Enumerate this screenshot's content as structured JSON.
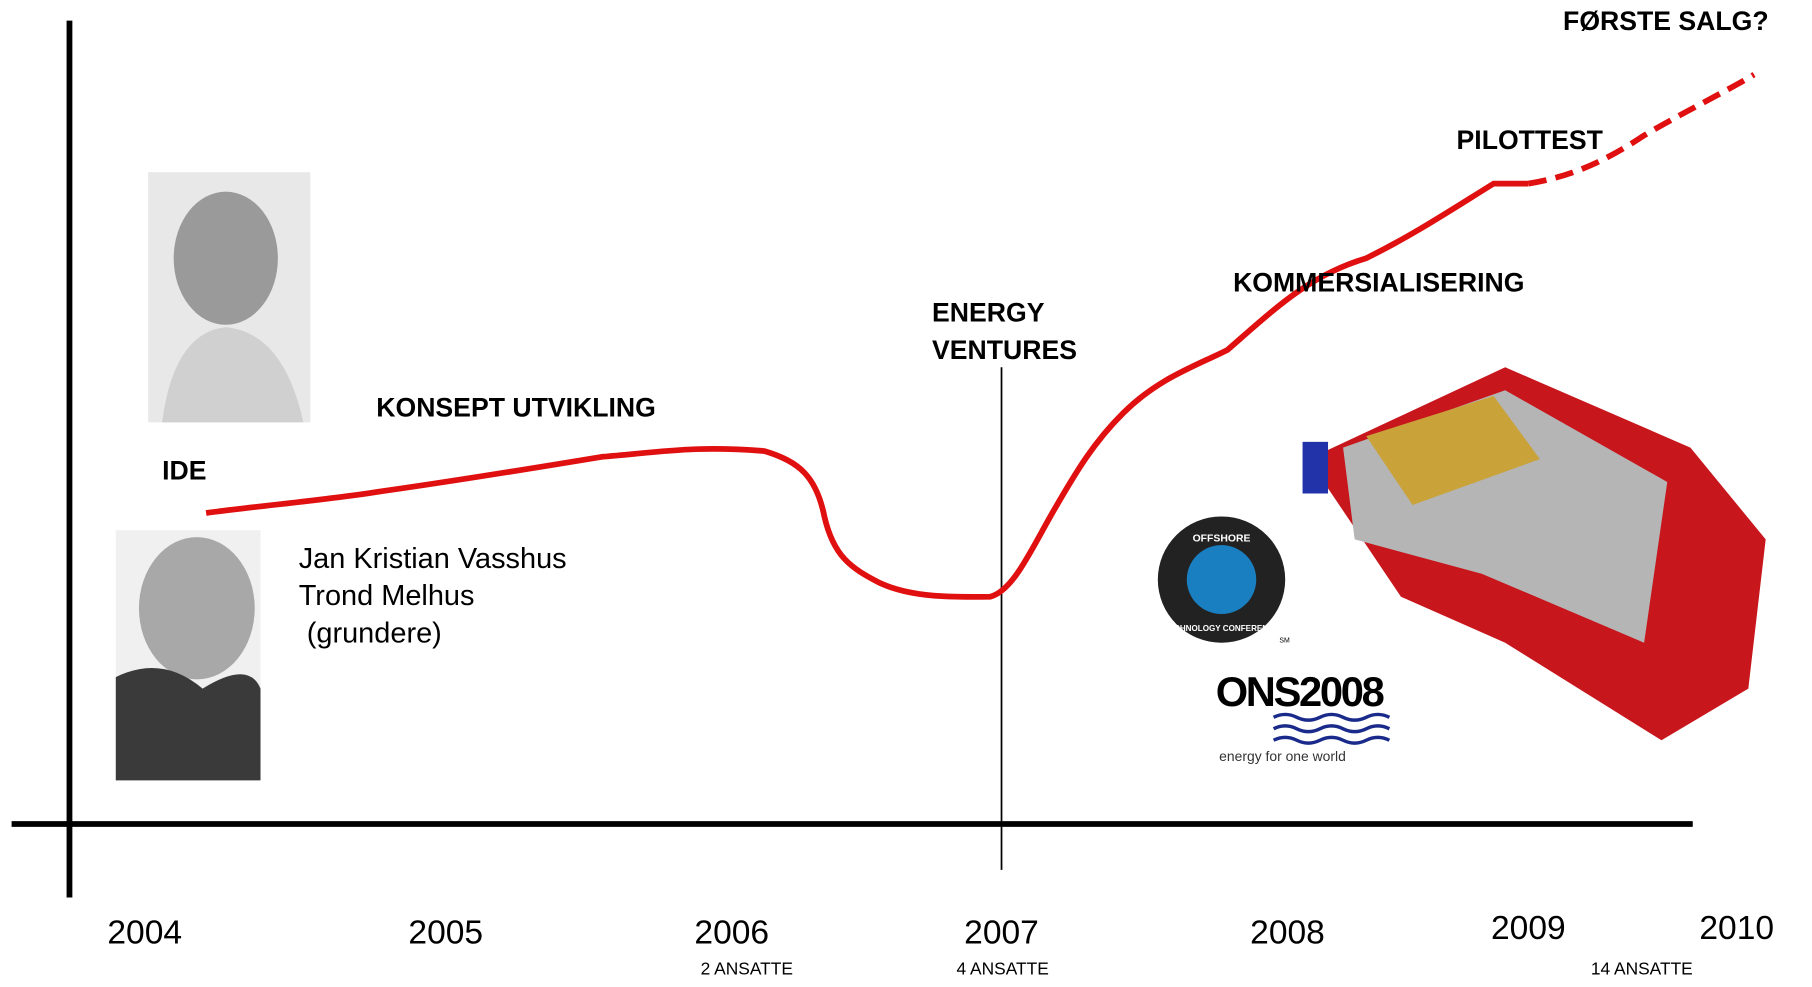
{
  "labels": {
    "start": "IDE",
    "concept": "KONSEPT UTVIKLING",
    "investor": [
      "ENERGY",
      "VENTURES"
    ],
    "commercial": "KOMMERSIALISERING",
    "pilot": "PILOTTEST",
    "sale": "FØRSTE SALG?"
  },
  "founders": [
    "Jan Kristian Vasshus",
    "Trond Melhus",
    " (grundere)"
  ],
  "years": [
    "2004",
    "2005",
    "2006",
    "2007",
    "2008",
    "2009",
    "2010"
  ],
  "staff": {
    "2006": "2 ANSATTE",
    "2007": "4 ANSATTE",
    "2010": "14 ANSATTE"
  },
  "logos": {
    "otc_top": "OFFSHORE",
    "otc_bottom": "TECHNOLOGY CONFERENCE",
    "otc_mark": "SM",
    "ons": "ONS2008",
    "ons_tagline": "energy for one world"
  }
}
